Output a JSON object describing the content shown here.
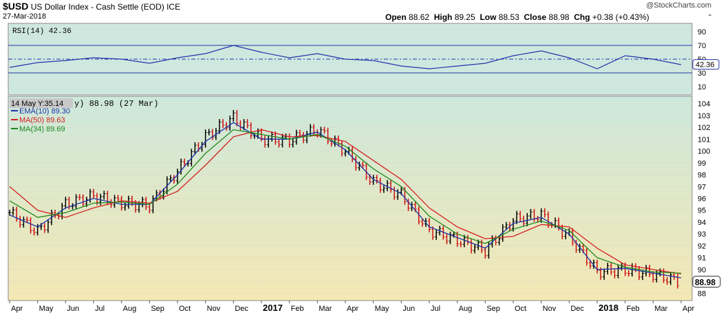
{
  "header": {
    "symbol": "$USD",
    "name": "US Dollar Index - Cash Settle (EOD) ICE",
    "date": "27-Mar-2018",
    "brand": "@StockCharts.com",
    "ohlc": {
      "open_label": "Open",
      "open": "88.62",
      "high_label": "High",
      "high": "89.25",
      "low_label": "Low",
      "low": "88.53",
      "close_label": "Close",
      "close": "88.98",
      "chg_label": "Chg",
      "chg": "+0.38 (+0.43%)"
    }
  },
  "chart_data": [
    {
      "type": "line",
      "panel": "rsi",
      "indicator_label": "RSI(14) 42.36",
      "ylim": [
        0,
        100
      ],
      "y_ticks": [
        10,
        30,
        50,
        70,
        90
      ],
      "levels": [
        30,
        50,
        70
      ],
      "current_value": 42.36,
      "current_value_label": "42.36",
      "x": [
        "Apr 2016",
        "May",
        "Jun",
        "Jul",
        "Aug",
        "Sep",
        "Oct",
        "Nov",
        "Dec",
        "2017",
        "Feb",
        "Mar",
        "Apr",
        "May",
        "Jun",
        "Jul",
        "Aug",
        "Sep",
        "Oct",
        "Nov",
        "Dec",
        "2018",
        "Feb",
        "Mar",
        "27 Mar 2018"
      ],
      "values": [
        38,
        45,
        48,
        52,
        50,
        44,
        52,
        58,
        70,
        60,
        52,
        58,
        50,
        48,
        40,
        36,
        40,
        44,
        55,
        62,
        52,
        36,
        55,
        50,
        42
      ],
      "colors": {
        "line": "#2233aa",
        "background": "#cfe8df"
      }
    },
    {
      "type": "line",
      "panel": "price",
      "tooltip": "14 May Y:35.14",
      "price_label": "y) 88.98 (27 Mar)",
      "legend": [
        {
          "name": "EMA(10) 89.30",
          "color": "#1a33a8"
        },
        {
          "name": "MA(50) 89.63",
          "color": "#d42020"
        },
        {
          "name": "MA(34) 89.69",
          "color": "#1f8a1f"
        }
      ],
      "ylim": [
        87.5,
        104.5
      ],
      "y_ticks": [
        88,
        89,
        90,
        91,
        92,
        93,
        94,
        95,
        96,
        97,
        98,
        99,
        100,
        101,
        102,
        103,
        104
      ],
      "last_price_label": "88.98",
      "x_tick_labels": [
        "Apr",
        "May",
        "Jun",
        "Jul",
        "Aug",
        "Sep",
        "Oct",
        "Nov",
        "Dec",
        "2017",
        "Feb",
        "Mar",
        "Apr",
        "May",
        "Jun",
        "Jul",
        "Aug",
        "Sep",
        "Oct",
        "Nov",
        "Dec",
        "2018",
        "Feb",
        "Mar",
        "Apr"
      ],
      "x": [
        "Apr 2016",
        "May",
        "Jun",
        "Jul",
        "Aug",
        "Sep",
        "Oct",
        "Nov",
        "Dec",
        "2017",
        "Feb",
        "Mar",
        "Apr",
        "May",
        "Jun",
        "Jul",
        "Aug",
        "Sep",
        "Oct",
        "Nov",
        "Dec",
        "2018",
        "Feb",
        "Mar",
        "27 Mar 2018"
      ],
      "series": [
        {
          "name": "Close",
          "values": [
            94.8,
            93.2,
            95.5,
            96.2,
            95.6,
            95.4,
            98.3,
            101.2,
            102.8,
            101.0,
            100.9,
            101.8,
            100.0,
            97.4,
            96.3,
            93.3,
            92.5,
            91.6,
            94.2,
            94.6,
            92.8,
            89.8,
            90.0,
            89.6,
            88.98
          ]
        },
        {
          "name": "EMA(10)",
          "values": [
            94.6,
            93.6,
            95.2,
            96.0,
            95.5,
            95.5,
            98.0,
            100.8,
            102.4,
            101.0,
            101.0,
            101.6,
            100.1,
            97.6,
            96.4,
            93.6,
            92.7,
            91.8,
            93.9,
            94.4,
            93.0,
            90.0,
            90.1,
            89.7,
            89.3
          ]
        },
        {
          "name": "MA(50)",
          "values": [
            97.0,
            95.0,
            94.4,
            95.2,
            95.8,
            95.6,
            96.6,
            98.8,
            101.2,
            101.8,
            101.2,
            101.3,
            100.8,
            99.2,
            97.6,
            95.2,
            93.6,
            92.6,
            92.8,
            93.8,
            93.6,
            91.8,
            90.4,
            90.0,
            89.63
          ]
        },
        {
          "name": "MA(34)",
          "values": [
            95.8,
            94.4,
            94.8,
            95.6,
            95.7,
            95.5,
            97.2,
            99.8,
            101.8,
            101.4,
            101.0,
            101.4,
            100.4,
            98.5,
            97.0,
            94.5,
            93.0,
            92.2,
            93.4,
            94.1,
            93.3,
            91.0,
            90.2,
            89.8,
            89.69
          ]
        }
      ]
    }
  ]
}
